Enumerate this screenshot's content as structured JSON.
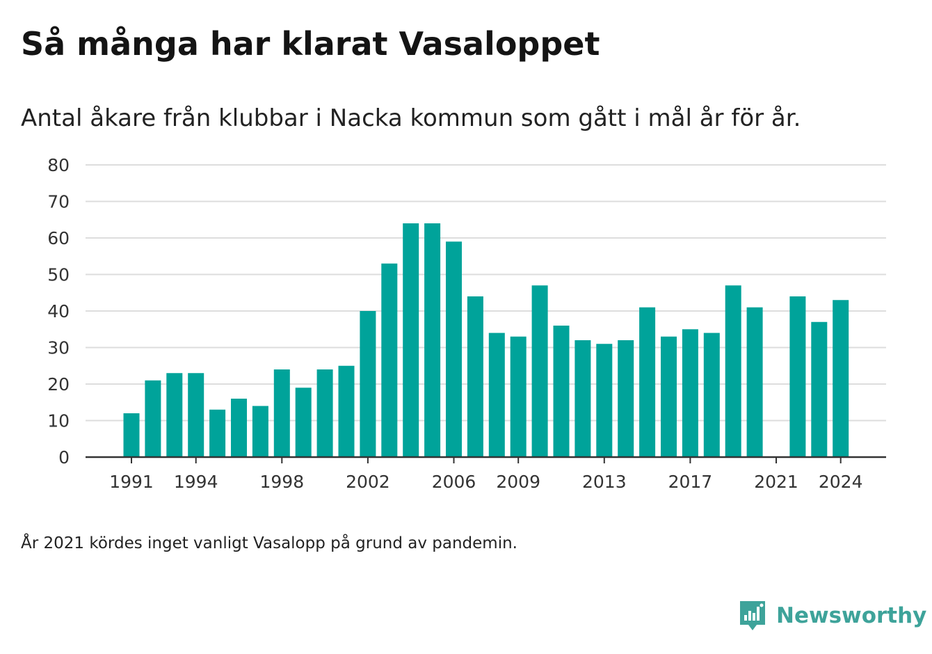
{
  "title": "Så många har klarat Vasaloppet",
  "subtitle": "Antal åkare från klubbar i Nacka kommun som gått i mål år för år.",
  "note": "År 2021 kördes inget vanligt Vasalopp på grund av pandemin.",
  "brand": {
    "name": "Newsworthy",
    "icon": "newsworthy-chart-bubble-icon",
    "color": "#3ea39a"
  },
  "colors": {
    "bar": "#00a39a",
    "grid": "#dddddd",
    "axis": "#333333"
  },
  "chart_data": {
    "type": "bar",
    "title": "Så många har klarat Vasaloppet",
    "subtitle": "Antal åkare från klubbar i Nacka kommun som gått i mål år för år.",
    "xlabel": "",
    "ylabel": "",
    "ylim": [
      0,
      80
    ],
    "yticks": [
      0,
      10,
      20,
      30,
      40,
      50,
      60,
      70,
      80
    ],
    "xticks": [
      1991,
      1994,
      1998,
      2002,
      2006,
      2009,
      2013,
      2017,
      2021,
      2024
    ],
    "grid": true,
    "legend": "none",
    "categories": [
      1991,
      1992,
      1993,
      1994,
      1995,
      1996,
      1997,
      1998,
      1999,
      2000,
      2001,
      2002,
      2003,
      2004,
      2005,
      2006,
      2007,
      2008,
      2009,
      2010,
      2011,
      2012,
      2013,
      2014,
      2015,
      2016,
      2017,
      2018,
      2019,
      2020,
      2021,
      2022,
      2023,
      2024
    ],
    "values": [
      12,
      21,
      23,
      23,
      13,
      16,
      14,
      24,
      19,
      24,
      25,
      40,
      53,
      64,
      64,
      59,
      44,
      34,
      33,
      47,
      36,
      32,
      31,
      32,
      41,
      33,
      35,
      34,
      47,
      41,
      null,
      44,
      37,
      43
    ]
  }
}
